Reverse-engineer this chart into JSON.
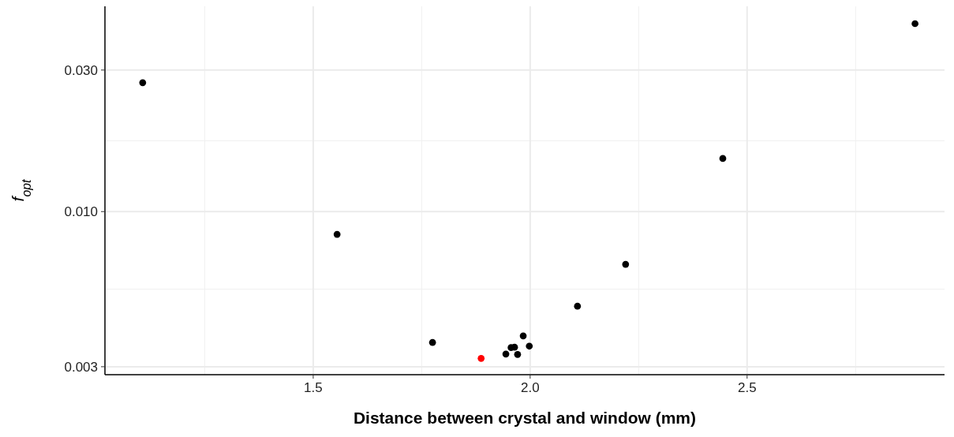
{
  "chart_data": {
    "type": "scatter",
    "xlabel": "Distance between crystal and window (mm)",
    "ylabel": "f$_{opt}$",
    "x": [
      1.107,
      1.555,
      1.775,
      1.887,
      1.944,
      1.956,
      1.964,
      1.971,
      1.984,
      1.998,
      2.109,
      2.22,
      2.444,
      2.887
    ],
    "values": [
      0.0272,
      0.00838,
      0.00362,
      0.0032,
      0.00331,
      0.00348,
      0.00349,
      0.0033,
      0.00381,
      0.00352,
      0.0048,
      0.00664,
      0.0151,
      0.043
    ],
    "colors": [
      "#000000",
      "#000000",
      "#000000",
      "#ff0000",
      "#000000",
      "#000000",
      "#000000",
      "#000000",
      "#000000",
      "#000000",
      "#000000",
      "#000000",
      "#000000",
      "#000000"
    ],
    "xlim": [
      1.02,
      2.955
    ],
    "xticks": [
      {
        "value": 1.5,
        "label": "1.5"
      },
      {
        "value": 2,
        "label": "2.0"
      },
      {
        "value": 2.5,
        "label": "2.5"
      }
    ],
    "ylim": [
      0.00282,
      0.0492
    ],
    "yticks": [
      {
        "value": 0.003,
        "label": "0.003"
      },
      {
        "value": 0.01,
        "label": "0.010"
      },
      {
        "value": 0.03,
        "label": "0.030"
      }
    ],
    "log": "y",
    "grid": true,
    "marker": "circle"
  }
}
